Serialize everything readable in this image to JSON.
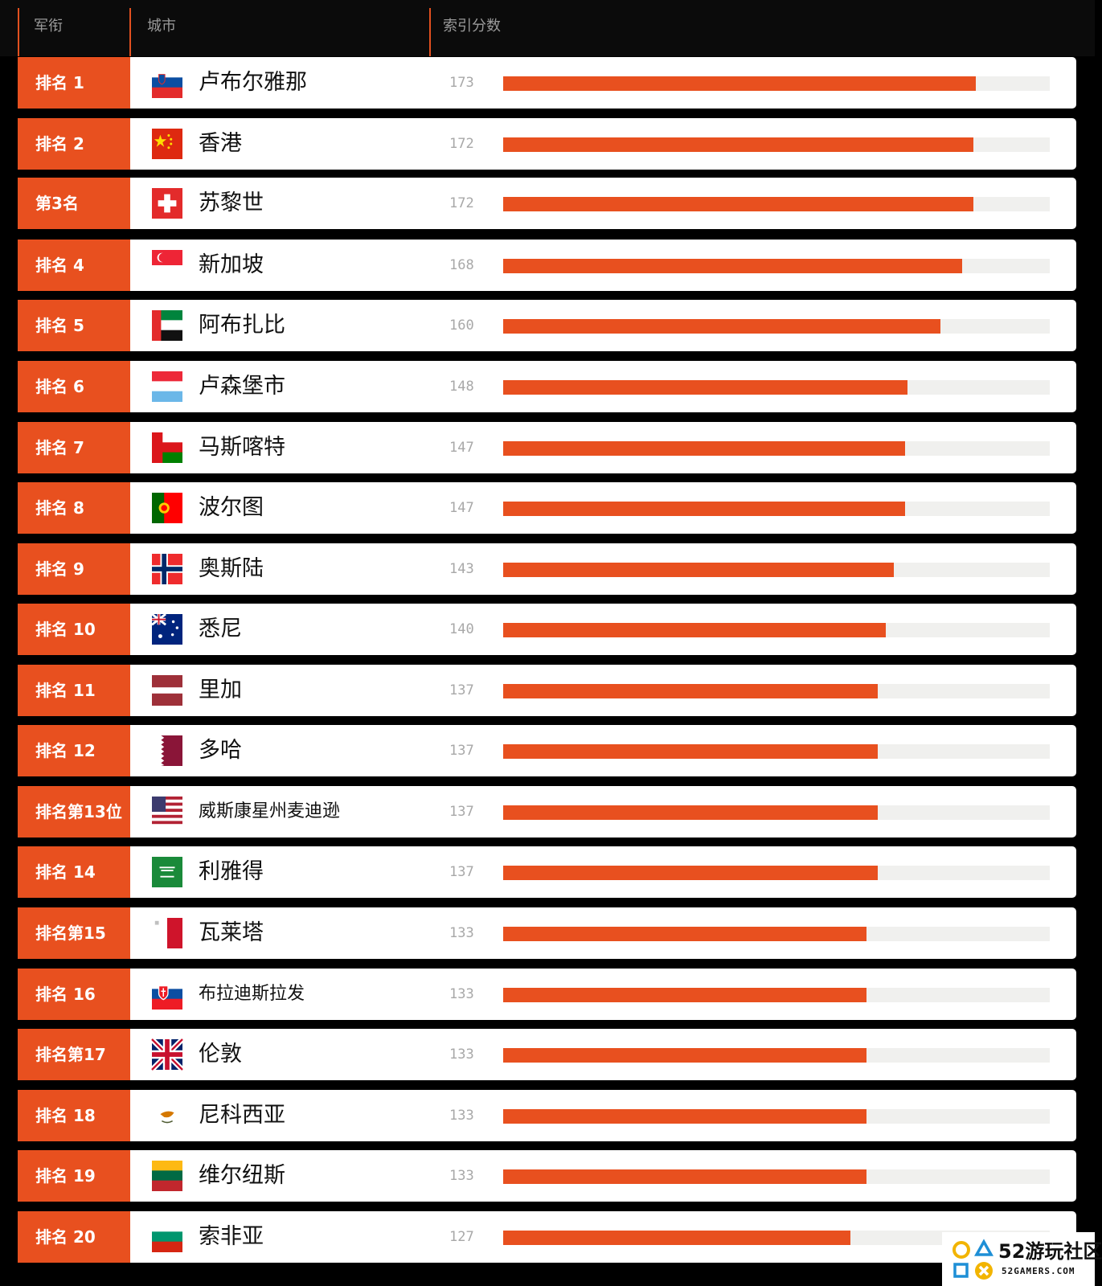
{
  "header": {
    "rank": "军衔",
    "city": "城市",
    "score": "索引分数"
  },
  "colors": {
    "accent": "#e8501f",
    "background": "#000000",
    "track": "#f0f0ee"
  },
  "chart_data": {
    "type": "bar",
    "xlim": [
      0,
      200
    ],
    "rows": [
      {
        "rank": "排名 1",
        "city": "卢布尔雅那",
        "value": 173,
        "flag": "slovenia-flag-icon"
      },
      {
        "rank": "排名 2",
        "city": "香港",
        "value": 172,
        "flag": "china-flag-icon"
      },
      {
        "rank": "第3名",
        "city": "苏黎世",
        "value": 172,
        "flag": "switzerland-flag-icon"
      },
      {
        "rank": "排名 4",
        "city": "新加坡",
        "value": 168,
        "flag": "singapore-flag-icon"
      },
      {
        "rank": "排名 5",
        "city": "阿布扎比",
        "value": 160,
        "flag": "uae-flag-icon"
      },
      {
        "rank": "排名 6",
        "city": "卢森堡市",
        "value": 148,
        "flag": "luxembourg-flag-icon"
      },
      {
        "rank": "排名 7",
        "city": "马斯喀特",
        "value": 147,
        "flag": "oman-flag-icon"
      },
      {
        "rank": "排名 8",
        "city": "波尔图",
        "value": 147,
        "flag": "portugal-flag-icon"
      },
      {
        "rank": "排名 9",
        "city": "奥斯陆",
        "value": 143,
        "flag": "norway-flag-icon"
      },
      {
        "rank": "排名 10",
        "city": "悉尼",
        "value": 140,
        "flag": "australia-flag-icon"
      },
      {
        "rank": "排名 11",
        "city": "里加",
        "value": 137,
        "flag": "latvia-flag-icon"
      },
      {
        "rank": "排名 12",
        "city": "多哈",
        "value": 137,
        "flag": "qatar-flag-icon"
      },
      {
        "rank": "排名第13位",
        "city": "威斯康星州麦迪逊",
        "value": 137,
        "flag": "usa-flag-icon"
      },
      {
        "rank": "排名 14",
        "city": "利雅得",
        "value": 137,
        "flag": "saudi-flag-icon"
      },
      {
        "rank": "排名第15",
        "city": "瓦莱塔",
        "value": 133,
        "flag": "malta-flag-icon"
      },
      {
        "rank": "排名 16",
        "city": "布拉迪斯拉发",
        "value": 133,
        "flag": "slovakia-flag-icon"
      },
      {
        "rank": "排名第17",
        "city": "伦敦",
        "value": 133,
        "flag": "uk-flag-icon"
      },
      {
        "rank": "排名 18",
        "city": "尼科西亚",
        "value": 133,
        "flag": "cyprus-flag-icon"
      },
      {
        "rank": "排名 19",
        "city": "维尔纽斯",
        "value": 133,
        "flag": "lithuania-flag-icon"
      },
      {
        "rank": "排名 20",
        "city": "索非亚",
        "value": 127,
        "flag": "bulgaria-flag-icon"
      }
    ]
  },
  "watermark": {
    "title": "52游玩社区",
    "subtitle": "52GAMERS.COM"
  }
}
